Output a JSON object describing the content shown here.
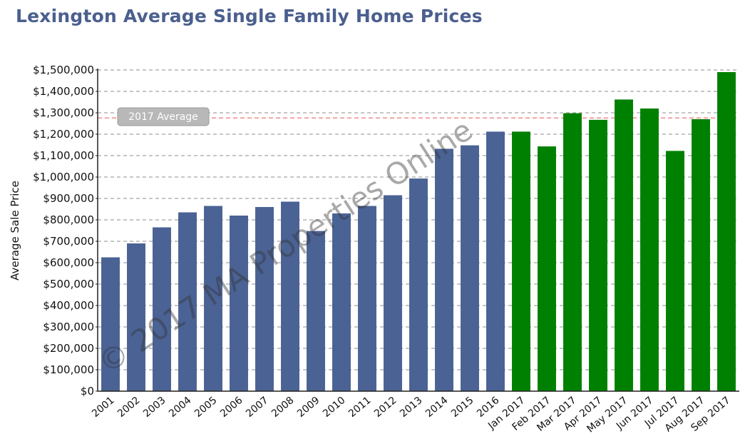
{
  "chart_data": {
    "type": "bar",
    "title": "Lexington Average Single Family Home Prices",
    "ylabel": "Average Sale Price",
    "xlabel": "",
    "ylim": [
      0,
      1500000
    ],
    "ytick_step": 100000,
    "grid": true,
    "categories": [
      "2001",
      "2002",
      "2003",
      "2004",
      "2005",
      "2006",
      "2007",
      "2008",
      "2009",
      "2010",
      "2011",
      "2012",
      "2013",
      "2014",
      "2015",
      "2016",
      "Jan 2017",
      "Feb 2017",
      "Mar 2017",
      "Apr 2017",
      "May 2017",
      "Jun 2017",
      "Jul 2017",
      "Aug 2017",
      "Sep 2017"
    ],
    "values": [
      625000,
      690000,
      765000,
      835000,
      865000,
      820000,
      860000,
      885000,
      748000,
      830000,
      865000,
      915000,
      993000,
      1132000,
      1148000,
      1212000,
      1212000,
      1143000,
      1298000,
      1267000,
      1362000,
      1320000,
      1122000,
      1270000,
      1490000
    ],
    "bar_colors": [
      "#4a6294",
      "#4a6294",
      "#4a6294",
      "#4a6294",
      "#4a6294",
      "#4a6294",
      "#4a6294",
      "#4a6294",
      "#4a6294",
      "#4a6294",
      "#4a6294",
      "#4a6294",
      "#4a6294",
      "#4a6294",
      "#4a6294",
      "#4a6294",
      "#008000",
      "#008000",
      "#008000",
      "#008000",
      "#008000",
      "#008000",
      "#008000",
      "#008000",
      "#008000"
    ],
    "reference_line": {
      "label": "2017 Average",
      "value": 1276000,
      "color": "#f4a3a3"
    },
    "watermark": "© 2017 MA Properties Online",
    "title_color": "#4b5f8f"
  }
}
